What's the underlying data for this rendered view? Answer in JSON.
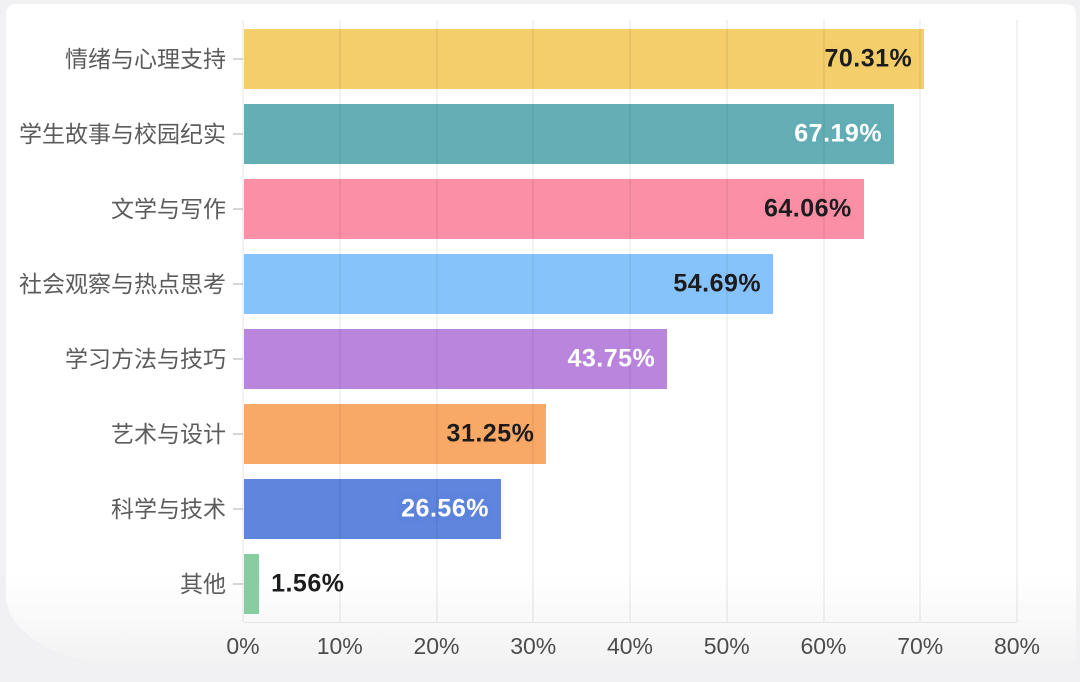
{
  "page": {
    "background_color": "#f1f1f3",
    "card_background_color": "#ffffff"
  },
  "chart_data": {
    "type": "bar",
    "orientation": "horizontal",
    "title": "",
    "xlabel": "",
    "ylabel": "",
    "categories": [
      "情绪与心理支持",
      "学生故事与校园纪实",
      "文学与写作",
      "社会观察与热点思考",
      "学习方法与技巧",
      "艺术与设计",
      "科学与技术",
      "其他"
    ],
    "values": [
      70.31,
      67.19,
      64.06,
      54.69,
      43.75,
      31.25,
      26.56,
      1.56
    ],
    "value_labels": [
      "70.31%",
      "67.19%",
      "64.06%",
      "54.69%",
      "43.75%",
      "31.25%",
      "26.56%",
      "1.56%"
    ],
    "bar_colors": [
      "#F3CE6B",
      "#65AEB6",
      "#FA8FA5",
      "#87C3FB",
      "#BA86DD",
      "#F9A967",
      "#5F85DC",
      "#88CDA2"
    ],
    "value_label_colors": [
      "#1c1c1e",
      "#ffffff",
      "#1c1c1e",
      "#1c1c1e",
      "#ffffff",
      "#1c1c1e",
      "#ffffff",
      "#1c1c1e"
    ],
    "value_label_positions": [
      "inside",
      "inside",
      "inside",
      "inside",
      "inside",
      "inside",
      "inside",
      "outside"
    ],
    "x_axis": {
      "tick_labels": [
        "0%",
        "10%",
        "20%",
        "30%",
        "40%",
        "50%",
        "60%",
        "70%",
        "80%"
      ],
      "min": 0,
      "max": 80,
      "grid": true
    },
    "legend": null,
    "category_text_color": "#5c5c5e",
    "axis_text_color": "#4c4c4e",
    "tick_mark_color": "#d6d6d8"
  }
}
